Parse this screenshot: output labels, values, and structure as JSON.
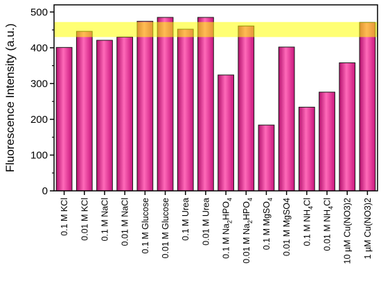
{
  "chart_data": {
    "type": "bar",
    "ylabel": "Fluorescence Intensity (a.u.)",
    "xlabel": "",
    "ylim": [
      0,
      520
    ],
    "yticks": [
      0,
      100,
      200,
      300,
      400,
      500
    ],
    "categories": [
      {
        "label": "0.1 M KCl",
        "value": 401
      },
      {
        "label": "0.01 M KCl",
        "value": 446
      },
      {
        "label": "0.1 M NaCl",
        "value": 421
      },
      {
        "label": "0.01 M NaCl",
        "value": 430
      },
      {
        "label": "0.1 M Glucose",
        "value": 474
      },
      {
        "label": "0.01 M Glucose",
        "value": 485
      },
      {
        "label": "0.1 M Urea",
        "value": 452
      },
      {
        "label": "0.01 M Urea",
        "value": 485
      },
      {
        "label": "0.1 M Na2HPO4",
        "main": "0.1 M Na",
        "sub1": "2",
        "mid": "HPO",
        "sub2": "4",
        "value": 324
      },
      {
        "label": "0.01 M Na2HPO4",
        "main": "0.01 M Na",
        "sub1": "2",
        "mid": "HPO",
        "sub2": "4",
        "value": 461
      },
      {
        "label": "0.1 M MgSO4",
        "main": "0.1 M MgSO",
        "sub1": "4",
        "value": 184
      },
      {
        "label": "0.01 M MgSO4",
        "main": "0.01 M MgSO4",
        "value": 402
      },
      {
        "label": "0.1 M NH4Cl",
        "main": "0.1 M NH",
        "sub1": "4",
        "mid": "Cl",
        "value": 234
      },
      {
        "label": "0.01 M NH4Cl",
        "main": "0.01 M NH",
        "sub1": "4",
        "mid": "Cl",
        "value": 276
      },
      {
        "label": "10 µM Cu(NO3)2",
        "main": "10 µM Cu(NO3)2",
        "value": 358
      },
      {
        "label": "1 µM Cu(NO3)2",
        "main": "1 µM Cu(NO3)2",
        "value": 471
      }
    ],
    "highlight_band": {
      "from": 430,
      "to": 472
    },
    "colors": {
      "bar_top": "#c8157c",
      "bar_mid": "#ff5fb4",
      "bar_edge": "#1a1a1a",
      "band": "#ffff00"
    }
  }
}
